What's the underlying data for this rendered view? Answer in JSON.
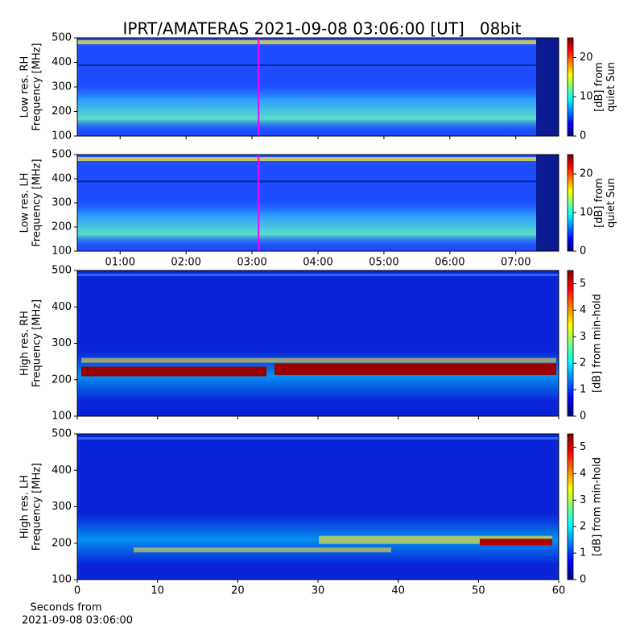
{
  "chart_data": [
    {
      "type": "heatmap",
      "title": "IPRT/AMATERAS 2021-09-08 03:06:00 [UT]   08bit",
      "ylabel": [
        "Low res. RH",
        "Frequency [MHz]"
      ],
      "ylim": [
        100,
        500
      ],
      "yticks": [
        100,
        200,
        300,
        400,
        500
      ],
      "xlim": [
        0.35,
        7.65
      ],
      "marker_x": 3.1,
      "marker_color": "#ff00ff",
      "colorbar": {
        "label": [
          "[dB] from",
          "quiet Sun"
        ],
        "lim": [
          0,
          25
        ],
        "ticks": [
          0,
          10,
          20
        ]
      }
    },
    {
      "type": "heatmap",
      "ylabel": [
        "Low res. LH",
        "Frequency [MHz]"
      ],
      "ylim": [
        100,
        500
      ],
      "yticks": [
        100,
        200,
        300,
        400,
        500
      ],
      "xlim": [
        0.35,
        7.65
      ],
      "xticks": [
        {
          "value": 1,
          "label": "01:00"
        },
        {
          "value": 2,
          "label": "02:00"
        },
        {
          "value": 3,
          "label": "03:00"
        },
        {
          "value": 4,
          "label": "04:00"
        },
        {
          "value": 5,
          "label": "05:00"
        },
        {
          "value": 6,
          "label": "06:00"
        },
        {
          "value": 7,
          "label": "07:00"
        }
      ],
      "marker_x": 3.1,
      "marker_color": "#ff00ff",
      "colorbar": {
        "label": [
          "[dB] from",
          "quiet Sun"
        ],
        "lim": [
          0,
          25
        ],
        "ticks": [
          0,
          10,
          20
        ]
      }
    },
    {
      "type": "heatmap",
      "ylabel": [
        "High res. RH",
        "Frequency [MHz]"
      ],
      "ylim": [
        100,
        500
      ],
      "yticks": [
        100,
        200,
        300,
        400,
        500
      ],
      "colorbar": {
        "label": [
          "[dB] from min-hold"
        ],
        "lim": [
          0,
          5.5
        ],
        "ticks": [
          0,
          1,
          2,
          3,
          4,
          5
        ]
      }
    },
    {
      "type": "heatmap",
      "ylabel": [
        "High res. LH",
        "Frequency [MHz]"
      ],
      "ylim": [
        100,
        500
      ],
      "yticks": [
        100,
        200,
        300,
        400,
        500
      ],
      "xlim": [
        0,
        60
      ],
      "xticks": [
        0,
        10,
        20,
        30,
        40,
        50,
        60
      ],
      "xlabel": [
        "Seconds from",
        "2021-09-08 03:06:00"
      ],
      "colorbar": {
        "label": [
          "[dB] from min-hold"
        ],
        "lim": [
          0,
          5.5
        ],
        "ticks": [
          0,
          1,
          2,
          3,
          4,
          5
        ]
      }
    }
  ]
}
